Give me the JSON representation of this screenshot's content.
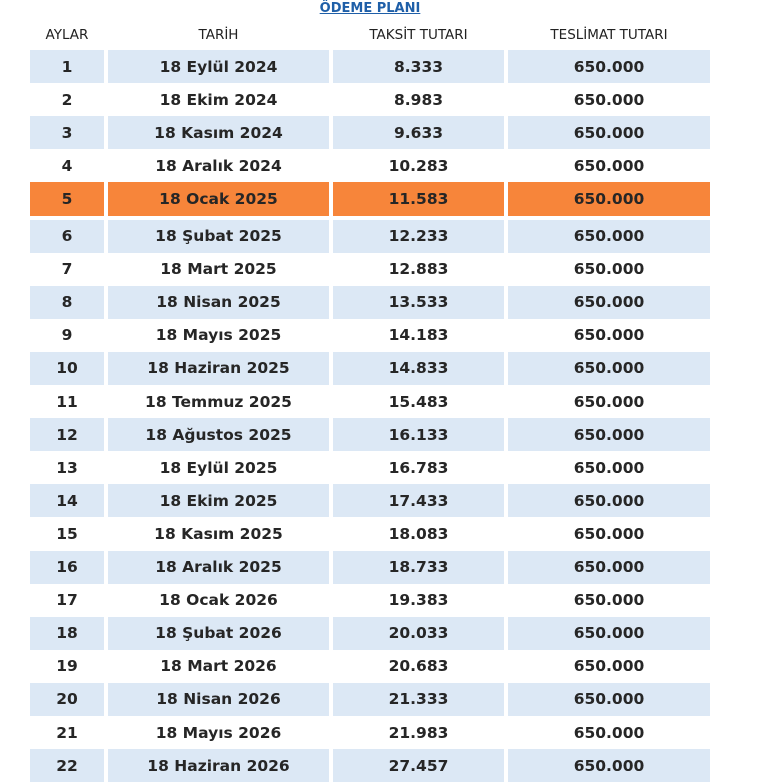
{
  "title": "ÖDEME PLANI",
  "table": {
    "headers": [
      "AYLAR",
      "TARİH",
      "TAKSİT TUTARI",
      "TESLİMAT TUTARI"
    ],
    "rows": [
      [
        "1",
        "18 Eylül 2024",
        "8.333",
        "650.000"
      ],
      [
        "2",
        "18 Ekim 2024",
        "8.983",
        "650.000"
      ],
      [
        "3",
        "18 Kasım 2024",
        "9.633",
        "650.000"
      ],
      [
        "4",
        "18 Aralık 2024",
        "10.283",
        "650.000"
      ],
      [
        "5",
        "18 Ocak 2025",
        "11.583",
        "650.000"
      ],
      [
        "6",
        "18 Şubat 2025",
        "12.233",
        "650.000"
      ],
      [
        "7",
        "18 Mart 2025",
        "12.883",
        "650.000"
      ],
      [
        "8",
        "18 Nisan 2025",
        "13.533",
        "650.000"
      ],
      [
        "9",
        "18 Mayıs 2025",
        "14.183",
        "650.000"
      ],
      [
        "10",
        "18 Haziran 2025",
        "14.833",
        "650.000"
      ],
      [
        "11",
        "18 Temmuz 2025",
        "15.483",
        "650.000"
      ],
      [
        "12",
        "18 Ağustos 2025",
        "16.133",
        "650.000"
      ],
      [
        "13",
        "18 Eylül 2025",
        "16.783",
        "650.000"
      ],
      [
        "14",
        "18 Ekim 2025",
        "17.433",
        "650.000"
      ],
      [
        "15",
        "18 Kasım 2025",
        "18.083",
        "650.000"
      ],
      [
        "16",
        "18 Aralık 2025",
        "18.733",
        "650.000"
      ],
      [
        "17",
        "18 Ocak 2026",
        "19.383",
        "650.000"
      ],
      [
        "18",
        "18 Şubat 2026",
        "20.033",
        "650.000"
      ],
      [
        "19",
        "18 Mart 2026",
        "20.683",
        "650.000"
      ],
      [
        "20",
        "18 Nisan 2026",
        "21.333",
        "650.000"
      ],
      [
        "21",
        "18 Mayıs 2026",
        "21.983",
        "650.000"
      ],
      [
        "22",
        "18 Haziran 2026",
        "27.457",
        "650.000"
      ]
    ]
  }
}
